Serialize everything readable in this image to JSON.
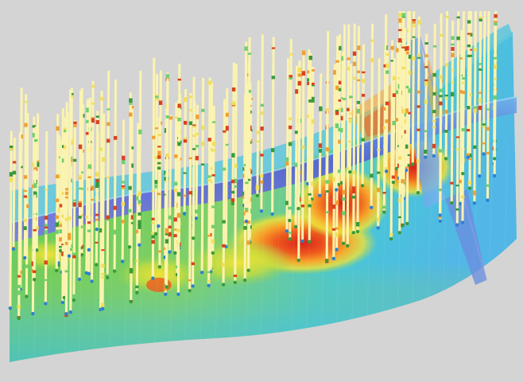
{
  "viewport": {
    "background_color": "#d4d4d4"
  },
  "reservoir_model": {
    "property_colors": [
      "#1e4bd6",
      "#35b7e6",
      "#4ecfb2",
      "#67c94a",
      "#b5d93b",
      "#f0e23a",
      "#f7a52a",
      "#ee5a1e",
      "#d8231a"
    ],
    "horizon_layer_color": "#5a66d6",
    "fault_plane_color": "#5aa8e8",
    "well_log_colors": [
      "#fbf3b0",
      "#f2df5a",
      "#f0a030",
      "#d9441c",
      "#3a9a3a",
      "#6fcf6f"
    ]
  }
}
